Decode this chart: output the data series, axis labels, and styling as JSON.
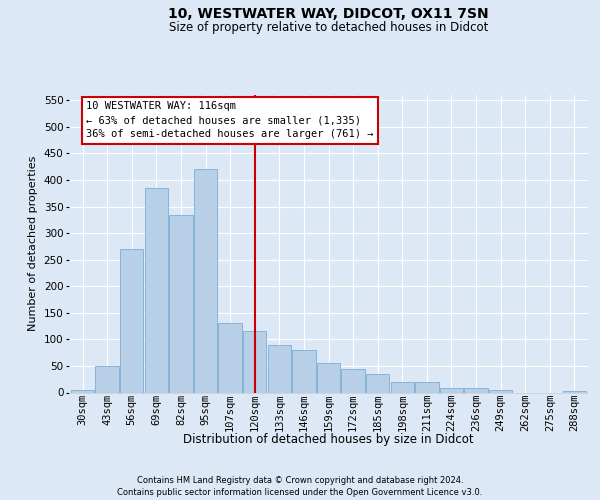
{
  "title": "10, WESTWATER WAY, DIDCOT, OX11 7SN",
  "subtitle": "Size of property relative to detached houses in Didcot",
  "xlabel": "Distribution of detached houses by size in Didcot",
  "ylabel": "Number of detached properties",
  "footer_line1": "Contains HM Land Registry data © Crown copyright and database right 2024.",
  "footer_line2": "Contains public sector information licensed under the Open Government Licence v3.0.",
  "categories": [
    "30sqm",
    "43sqm",
    "56sqm",
    "69sqm",
    "82sqm",
    "95sqm",
    "107sqm",
    "120sqm",
    "133sqm",
    "146sqm",
    "159sqm",
    "172sqm",
    "185sqm",
    "198sqm",
    "211sqm",
    "224sqm",
    "236sqm",
    "249sqm",
    "262sqm",
    "275sqm",
    "288sqm"
  ],
  "values": [
    5,
    50,
    270,
    385,
    335,
    420,
    130,
    115,
    90,
    80,
    55,
    45,
    35,
    20,
    20,
    8,
    8,
    4,
    0,
    0,
    3
  ],
  "bar_color": "#b8cfe8",
  "bar_edge_color": "#7aaed6",
  "property_line_x": 7.0,
  "property_line_color": "#cc0000",
  "annotation_text": "10 WESTWATER WAY: 116sqm\n← 63% of detached houses are smaller (1,335)\n36% of semi-detached houses are larger (761) →",
  "annotation_box_edge": "#cc0000",
  "ylim_max": 560,
  "yticks": [
    0,
    50,
    100,
    150,
    200,
    250,
    300,
    350,
    400,
    450,
    500,
    550
  ],
  "bg_color": "#dce8f5",
  "grid_color": "#ffffff",
  "title_fontsize": 10,
  "subtitle_fontsize": 8.5,
  "axis_label_fontsize": 8.5,
  "ylabel_fontsize": 8,
  "tick_fontsize": 7.5,
  "footer_fontsize": 6.0,
  "annotation_fontsize": 7.5
}
